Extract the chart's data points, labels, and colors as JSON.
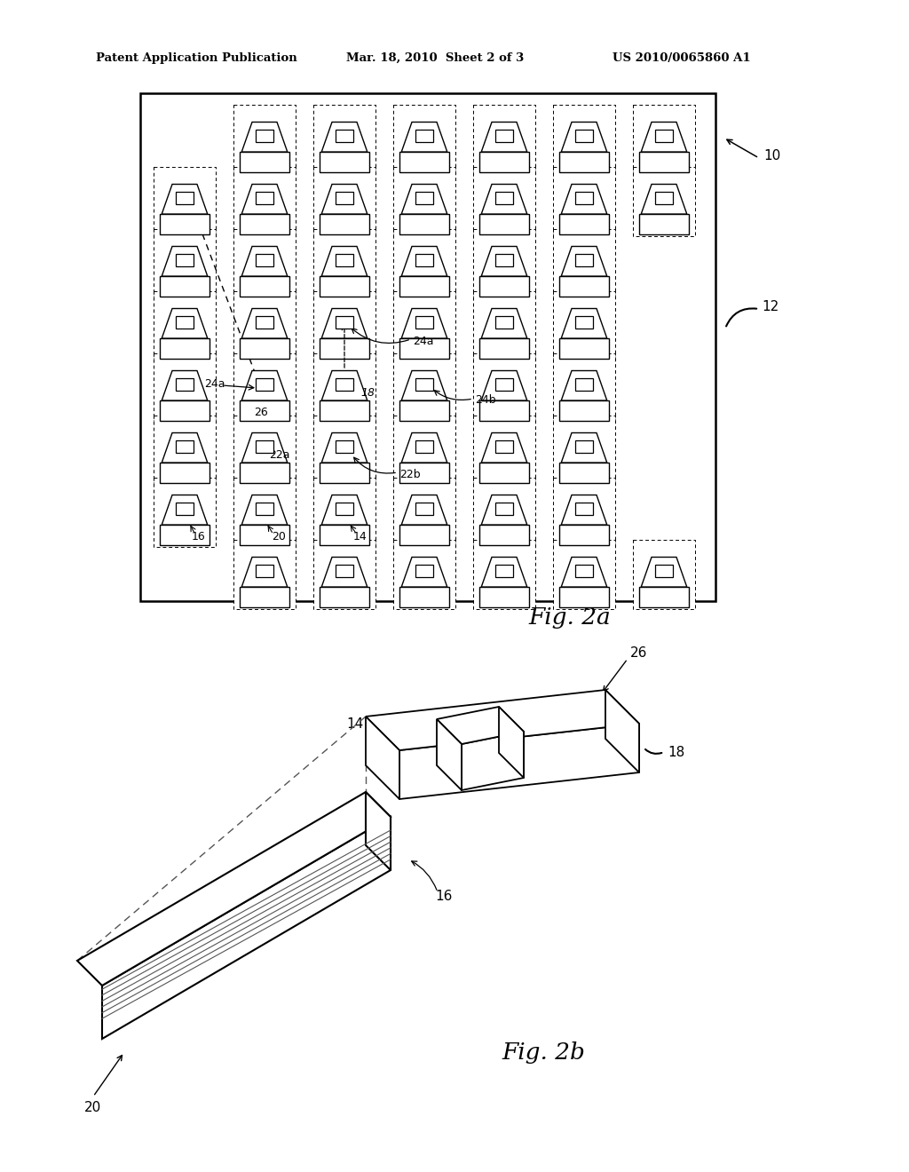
{
  "bg_color": "#ffffff",
  "header_left": "Patent Application Publication",
  "header_mid": "Mar. 18, 2010  Sheet 2 of 3",
  "header_right": "US 2010/0065860 A1",
  "fig2a_label": "Fig. 2a",
  "fig2b_label": "Fig. 2b",
  "label_10": "10",
  "label_12": "12",
  "label_14": "14",
  "label_16": "16",
  "label_18": "18",
  "label_20": "20",
  "label_22a": "22a",
  "label_22b": "22b",
  "label_24a_1": "24a",
  "label_24a_2": "24a",
  "label_24b": "24b",
  "label_26": "26",
  "line_color": "#000000"
}
